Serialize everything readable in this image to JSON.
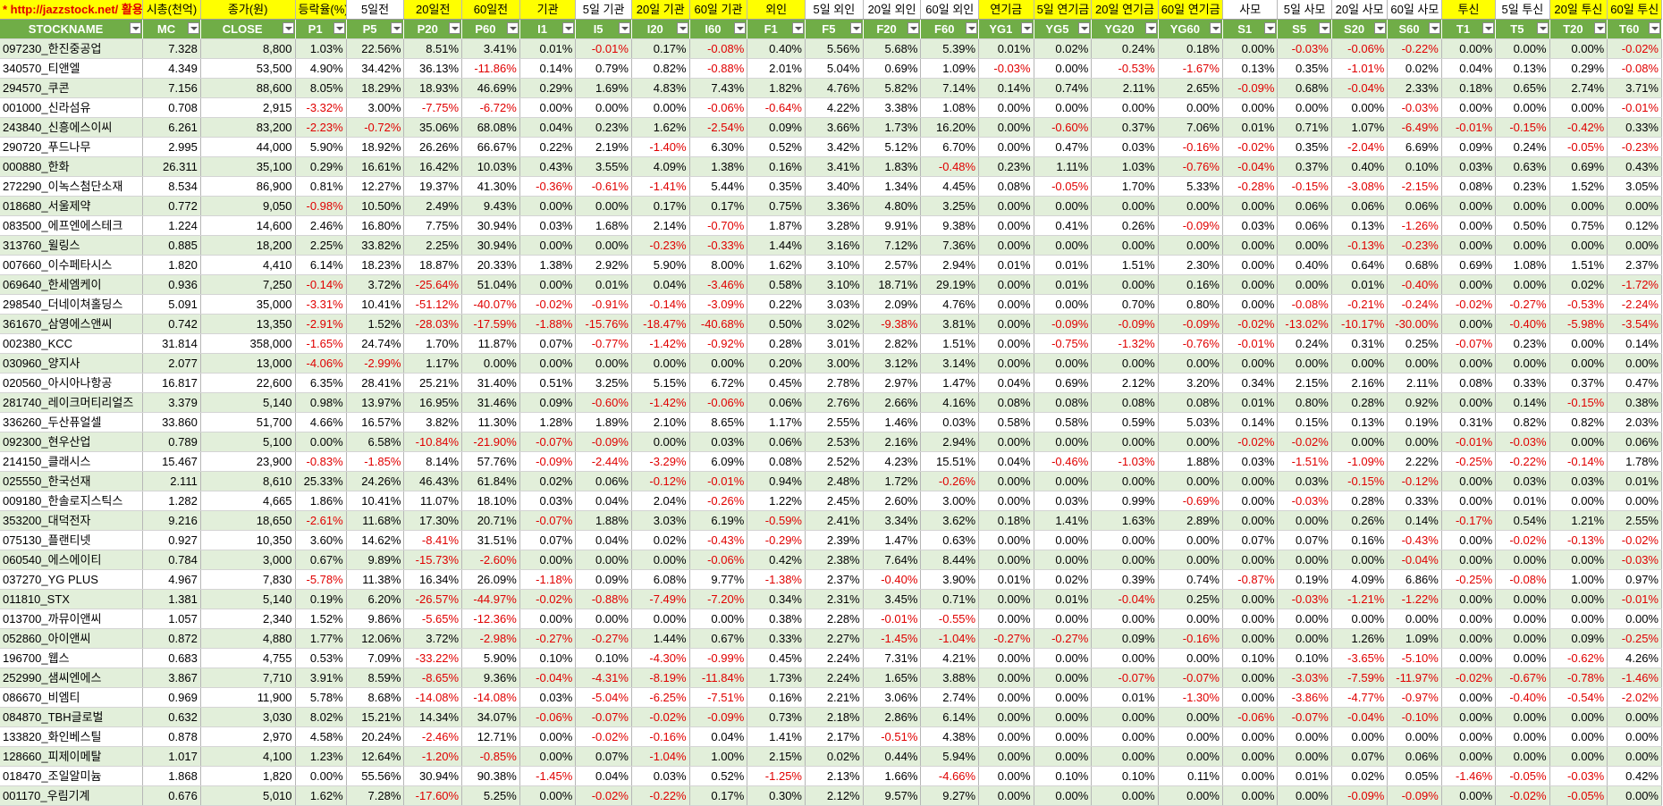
{
  "header1": [
    "* http://jazzstock.net/ 활용",
    "시총(천억)",
    "종가(원)",
    "등락율(%)",
    "5일전",
    "20일전",
    "60일전",
    "기관",
    "5일 기관",
    "20일 기관",
    "60일 기관",
    "외인",
    "5일 외인",
    "20일 외인",
    "60일 외인",
    "연기금",
    "5일 연기금",
    "20일 연기금",
    "60일 연기금",
    "사모",
    "5일 사모",
    "20일 사모",
    "60일 사모",
    "투신",
    "5일 투신",
    "20일 투신",
    "60일 투신"
  ],
  "header2": [
    "STOCKNAME",
    "MC",
    "CLOSE",
    "P1",
    "P5",
    "P20",
    "P60",
    "I1",
    "I5",
    "I20",
    "I60",
    "F1",
    "F5",
    "F20",
    "F60",
    "YG1",
    "YG5",
    "YG20",
    "YG60",
    "S1",
    "S5",
    "S20",
    "S60",
    "T1",
    "T5",
    "T20",
    "T60"
  ],
  "rows": [
    [
      "097230_한진중공업",
      "7.328",
      "8,800",
      "1.03%",
      "22.56%",
      "8.51%",
      "3.41%",
      "0.01%",
      "-0.01%",
      "0.17%",
      "-0.08%",
      "0.40%",
      "5.56%",
      "5.68%",
      "5.39%",
      "0.01%",
      "0.02%",
      "0.24%",
      "0.18%",
      "0.00%",
      "-0.03%",
      "-0.06%",
      "-0.22%",
      "0.00%",
      "0.00%",
      "0.00%",
      "-0.02%"
    ],
    [
      "340570_티앤엘",
      "4.349",
      "53,500",
      "4.90%",
      "34.42%",
      "36.13%",
      "-11.86%",
      "0.14%",
      "0.79%",
      "0.82%",
      "-0.88%",
      "2.01%",
      "5.04%",
      "0.69%",
      "1.09%",
      "-0.03%",
      "0.00%",
      "-0.53%",
      "-1.67%",
      "0.13%",
      "0.35%",
      "-1.01%",
      "0.02%",
      "0.04%",
      "0.13%",
      "0.29%",
      "-0.08%"
    ],
    [
      "294570_쿠콘",
      "7.156",
      "88,600",
      "8.05%",
      "18.29%",
      "18.93%",
      "46.69%",
      "0.29%",
      "1.69%",
      "4.83%",
      "7.43%",
      "1.82%",
      "4.76%",
      "5.82%",
      "7.14%",
      "0.14%",
      "0.74%",
      "2.11%",
      "2.65%",
      "-0.09%",
      "0.68%",
      "-0.04%",
      "2.33%",
      "0.18%",
      "0.65%",
      "2.74%",
      "3.71%"
    ],
    [
      "001000_신라섬유",
      "0.708",
      "2,915",
      "-3.32%",
      "3.00%",
      "-7.75%",
      "-6.72%",
      "0.00%",
      "0.00%",
      "0.00%",
      "-0.06%",
      "-0.64%",
      "4.22%",
      "3.38%",
      "1.08%",
      "0.00%",
      "0.00%",
      "0.00%",
      "0.00%",
      "0.00%",
      "0.00%",
      "0.00%",
      "-0.03%",
      "0.00%",
      "0.00%",
      "0.00%",
      "-0.01%"
    ],
    [
      "243840_신흥에스이씨",
      "6.261",
      "83,200",
      "-2.23%",
      "-0.72%",
      "35.06%",
      "68.08%",
      "0.04%",
      "0.23%",
      "1.62%",
      "-2.54%",
      "0.09%",
      "3.66%",
      "1.73%",
      "16.20%",
      "0.00%",
      "-0.60%",
      "0.37%",
      "7.06%",
      "0.01%",
      "0.71%",
      "1.07%",
      "-6.49%",
      "-0.01%",
      "-0.15%",
      "-0.42%",
      "0.33%"
    ],
    [
      "290720_푸드나무",
      "2.995",
      "44,000",
      "5.90%",
      "18.92%",
      "26.26%",
      "66.67%",
      "0.22%",
      "2.19%",
      "-1.40%",
      "6.30%",
      "0.52%",
      "3.42%",
      "5.12%",
      "6.70%",
      "0.00%",
      "0.47%",
      "0.03%",
      "-0.16%",
      "-0.02%",
      "0.35%",
      "-2.04%",
      "6.69%",
      "0.09%",
      "0.24%",
      "-0.05%",
      "-0.23%"
    ],
    [
      "000880_한화",
      "26.311",
      "35,100",
      "0.29%",
      "16.61%",
      "16.42%",
      "10.03%",
      "0.43%",
      "3.55%",
      "4.09%",
      "1.38%",
      "0.16%",
      "3.41%",
      "1.83%",
      "-0.48%",
      "0.23%",
      "1.11%",
      "1.03%",
      "-0.76%",
      "-0.04%",
      "0.37%",
      "0.40%",
      "0.10%",
      "0.03%",
      "0.63%",
      "0.69%",
      "0.43%"
    ],
    [
      "272290_이녹스첨단소재",
      "8.534",
      "86,900",
      "0.81%",
      "12.27%",
      "19.37%",
      "41.30%",
      "-0.36%",
      "-0.61%",
      "-1.41%",
      "5.44%",
      "0.35%",
      "3.40%",
      "1.34%",
      "4.45%",
      "0.08%",
      "-0.05%",
      "1.70%",
      "5.33%",
      "-0.28%",
      "-0.15%",
      "-3.08%",
      "-2.15%",
      "0.08%",
      "0.23%",
      "1.52%",
      "3.05%"
    ],
    [
      "018680_서울제약",
      "0.772",
      "9,050",
      "-0.98%",
      "10.50%",
      "2.49%",
      "9.43%",
      "0.00%",
      "0.00%",
      "0.17%",
      "0.17%",
      "0.75%",
      "3.36%",
      "4.80%",
      "3.25%",
      "0.00%",
      "0.00%",
      "0.00%",
      "0.00%",
      "0.00%",
      "0.06%",
      "0.06%",
      "0.06%",
      "0.00%",
      "0.00%",
      "0.00%",
      "0.00%"
    ],
    [
      "083500_에프엔에스테크",
      "1.224",
      "14,600",
      "2.46%",
      "16.80%",
      "7.75%",
      "30.94%",
      "0.03%",
      "1.68%",
      "2.14%",
      "-0.70%",
      "1.87%",
      "3.28%",
      "9.91%",
      "9.38%",
      "0.00%",
      "0.41%",
      "0.26%",
      "-0.09%",
      "0.03%",
      "0.06%",
      "0.13%",
      "-1.26%",
      "0.00%",
      "0.50%",
      "0.75%",
      "0.12%"
    ],
    [
      "313760_윌링스",
      "0.885",
      "18,200",
      "2.25%",
      "33.82%",
      "2.25%",
      "30.94%",
      "0.00%",
      "0.00%",
      "-0.23%",
      "-0.33%",
      "1.44%",
      "3.16%",
      "7.12%",
      "7.36%",
      "0.00%",
      "0.00%",
      "0.00%",
      "0.00%",
      "0.00%",
      "0.00%",
      "-0.13%",
      "-0.23%",
      "0.00%",
      "0.00%",
      "0.00%",
      "0.00%"
    ],
    [
      "007660_이수페타시스",
      "1.820",
      "4,410",
      "6.14%",
      "18.23%",
      "18.87%",
      "20.33%",
      "1.38%",
      "2.92%",
      "5.90%",
      "8.00%",
      "1.62%",
      "3.10%",
      "2.57%",
      "2.94%",
      "0.01%",
      "0.01%",
      "1.51%",
      "2.30%",
      "0.00%",
      "0.40%",
      "0.64%",
      "0.68%",
      "0.69%",
      "1.08%",
      "1.51%",
      "2.37%"
    ],
    [
      "069640_한세엠케이",
      "0.936",
      "7,250",
      "-0.14%",
      "3.72%",
      "-25.64%",
      "51.04%",
      "0.00%",
      "0.01%",
      "0.04%",
      "-3.46%",
      "0.58%",
      "3.10%",
      "18.71%",
      "29.19%",
      "0.00%",
      "0.01%",
      "0.00%",
      "0.16%",
      "0.00%",
      "0.00%",
      "0.01%",
      "-0.40%",
      "0.00%",
      "0.00%",
      "0.02%",
      "-1.72%"
    ],
    [
      "298540_더네이쳐홀딩스",
      "5.091",
      "35,000",
      "-3.31%",
      "10.41%",
      "-51.12%",
      "-40.07%",
      "-0.02%",
      "-0.91%",
      "-0.14%",
      "-3.09%",
      "0.22%",
      "3.03%",
      "2.09%",
      "4.76%",
      "0.00%",
      "0.00%",
      "0.70%",
      "0.80%",
      "0.00%",
      "-0.08%",
      "-0.21%",
      "-0.24%",
      "-0.02%",
      "-0.27%",
      "-0.53%",
      "-2.24%"
    ],
    [
      "361670_삼영에스앤씨",
      "0.742",
      "13,350",
      "-2.91%",
      "1.52%",
      "-28.03%",
      "-17.59%",
      "-1.88%",
      "-15.76%",
      "-18.47%",
      "-40.68%",
      "0.50%",
      "3.02%",
      "-9.38%",
      "3.81%",
      "0.00%",
      "-0.09%",
      "-0.09%",
      "-0.09%",
      "-0.02%",
      "-13.02%",
      "-10.17%",
      "-30.00%",
      "0.00%",
      "-0.40%",
      "-5.98%",
      "-3.54%"
    ],
    [
      "002380_KCC",
      "31.814",
      "358,000",
      "-1.65%",
      "24.74%",
      "1.70%",
      "11.87%",
      "0.07%",
      "-0.77%",
      "-1.42%",
      "-0.92%",
      "0.28%",
      "3.01%",
      "2.82%",
      "1.51%",
      "0.00%",
      "-0.75%",
      "-1.32%",
      "-0.76%",
      "-0.01%",
      "0.24%",
      "0.31%",
      "0.25%",
      "-0.07%",
      "0.23%",
      "0.00%",
      "0.14%"
    ],
    [
      "030960_양지사",
      "2.077",
      "13,000",
      "-4.06%",
      "-2.99%",
      "1.17%",
      "0.00%",
      "0.00%",
      "0.00%",
      "0.00%",
      "0.00%",
      "0.20%",
      "3.00%",
      "3.12%",
      "3.14%",
      "0.00%",
      "0.00%",
      "0.00%",
      "0.00%",
      "0.00%",
      "0.00%",
      "0.00%",
      "0.00%",
      "0.00%",
      "0.00%",
      "0.00%",
      "0.00%"
    ],
    [
      "020560_아시아나항공",
      "16.817",
      "22,600",
      "6.35%",
      "28.41%",
      "25.21%",
      "31.40%",
      "0.51%",
      "3.25%",
      "5.15%",
      "6.72%",
      "0.45%",
      "2.78%",
      "2.97%",
      "1.47%",
      "0.04%",
      "0.69%",
      "2.12%",
      "3.20%",
      "0.34%",
      "2.15%",
      "2.16%",
      "2.11%",
      "0.08%",
      "0.33%",
      "0.37%",
      "0.47%"
    ],
    [
      "281740_레이크머티리얼즈",
      "3.379",
      "5,140",
      "0.98%",
      "13.97%",
      "16.95%",
      "31.46%",
      "0.09%",
      "-0.60%",
      "-1.42%",
      "-0.06%",
      "0.06%",
      "2.76%",
      "2.66%",
      "4.16%",
      "0.08%",
      "0.08%",
      "0.08%",
      "0.08%",
      "0.01%",
      "0.80%",
      "0.28%",
      "0.92%",
      "0.00%",
      "0.14%",
      "-0.15%",
      "0.38%"
    ],
    [
      "336260_두산퓨얼셀",
      "33.860",
      "51,700",
      "4.66%",
      "16.57%",
      "3.82%",
      "11.30%",
      "1.28%",
      "1.89%",
      "2.10%",
      "8.65%",
      "1.17%",
      "2.55%",
      "1.46%",
      "0.03%",
      "0.58%",
      "0.58%",
      "0.59%",
      "5.03%",
      "0.14%",
      "0.15%",
      "0.13%",
      "0.19%",
      "0.31%",
      "0.82%",
      "0.82%",
      "2.03%"
    ],
    [
      "092300_현우산업",
      "0.789",
      "5,100",
      "0.00%",
      "6.58%",
      "-10.84%",
      "-21.90%",
      "-0.07%",
      "-0.09%",
      "0.00%",
      "0.03%",
      "0.06%",
      "2.53%",
      "2.16%",
      "2.94%",
      "0.00%",
      "0.00%",
      "0.00%",
      "0.00%",
      "-0.02%",
      "-0.02%",
      "0.00%",
      "0.00%",
      "-0.01%",
      "-0.03%",
      "0.00%",
      "0.06%"
    ],
    [
      "214150_클래시스",
      "15.467",
      "23,900",
      "-0.83%",
      "-1.85%",
      "8.14%",
      "57.76%",
      "-0.09%",
      "-2.44%",
      "-3.29%",
      "6.09%",
      "0.08%",
      "2.52%",
      "4.23%",
      "15.51%",
      "0.04%",
      "-0.46%",
      "-1.03%",
      "1.88%",
      "0.03%",
      "-1.51%",
      "-1.09%",
      "2.22%",
      "-0.25%",
      "-0.22%",
      "-0.14%",
      "1.78%"
    ],
    [
      "025550_한국선재",
      "2.111",
      "8,610",
      "25.33%",
      "24.26%",
      "46.43%",
      "61.84%",
      "0.02%",
      "0.06%",
      "-0.12%",
      "-0.01%",
      "0.94%",
      "2.48%",
      "1.72%",
      "-0.26%",
      "0.00%",
      "0.00%",
      "0.00%",
      "0.00%",
      "0.00%",
      "0.03%",
      "-0.15%",
      "-0.12%",
      "0.00%",
      "0.03%",
      "0.03%",
      "0.01%"
    ],
    [
      "009180_한솔로지스틱스",
      "1.282",
      "4,665",
      "1.86%",
      "10.41%",
      "11.07%",
      "18.10%",
      "0.03%",
      "0.04%",
      "2.04%",
      "-0.26%",
      "1.22%",
      "2.45%",
      "2.60%",
      "3.00%",
      "0.00%",
      "0.03%",
      "0.99%",
      "-0.69%",
      "0.00%",
      "-0.03%",
      "0.28%",
      "0.33%",
      "0.00%",
      "0.01%",
      "0.00%",
      "0.00%"
    ],
    [
      "353200_대덕전자",
      "9.216",
      "18,650",
      "-2.61%",
      "11.68%",
      "17.30%",
      "20.71%",
      "-0.07%",
      "1.88%",
      "3.03%",
      "6.19%",
      "-0.59%",
      "2.41%",
      "3.34%",
      "3.62%",
      "0.18%",
      "1.41%",
      "1.63%",
      "2.89%",
      "0.00%",
      "0.00%",
      "0.26%",
      "0.14%",
      "-0.17%",
      "0.54%",
      "1.21%",
      "2.55%"
    ],
    [
      "075130_플랜티넷",
      "0.927",
      "10,350",
      "3.60%",
      "14.62%",
      "-8.41%",
      "31.51%",
      "0.07%",
      "0.04%",
      "0.02%",
      "-0.43%",
      "-0.29%",
      "2.39%",
      "1.47%",
      "0.63%",
      "0.00%",
      "0.00%",
      "0.00%",
      "0.00%",
      "0.07%",
      "0.07%",
      "0.16%",
      "-0.43%",
      "0.00%",
      "-0.02%",
      "-0.13%",
      "-0.02%"
    ],
    [
      "060540_에스에이티",
      "0.784",
      "3,000",
      "0.67%",
      "9.89%",
      "-15.73%",
      "-2.60%",
      "0.00%",
      "0.00%",
      "0.00%",
      "-0.06%",
      "0.42%",
      "2.38%",
      "7.64%",
      "8.44%",
      "0.00%",
      "0.00%",
      "0.00%",
      "0.00%",
      "0.00%",
      "0.00%",
      "0.00%",
      "-0.04%",
      "0.00%",
      "0.00%",
      "0.00%",
      "-0.03%"
    ],
    [
      "037270_YG PLUS",
      "4.967",
      "7,830",
      "-5.78%",
      "11.38%",
      "16.34%",
      "26.09%",
      "-1.18%",
      "0.09%",
      "6.08%",
      "9.77%",
      "-1.38%",
      "2.37%",
      "-0.40%",
      "3.90%",
      "0.01%",
      "0.02%",
      "0.39%",
      "0.74%",
      "-0.87%",
      "0.19%",
      "4.09%",
      "6.86%",
      "-0.25%",
      "-0.08%",
      "1.00%",
      "0.97%"
    ],
    [
      "011810_STX",
      "1.381",
      "5,140",
      "0.19%",
      "6.20%",
      "-26.57%",
      "-44.97%",
      "-0.02%",
      "-0.88%",
      "-7.49%",
      "-7.20%",
      "0.34%",
      "2.31%",
      "3.45%",
      "0.71%",
      "0.00%",
      "0.01%",
      "-0.04%",
      "0.25%",
      "0.00%",
      "-0.03%",
      "-1.21%",
      "-1.22%",
      "0.00%",
      "0.00%",
      "0.00%",
      "-0.01%"
    ],
    [
      "013700_까뮤이앤씨",
      "1.057",
      "2,340",
      "1.52%",
      "9.86%",
      "-5.65%",
      "-12.36%",
      "0.00%",
      "0.00%",
      "0.00%",
      "0.00%",
      "0.38%",
      "2.28%",
      "-0.01%",
      "-0.55%",
      "0.00%",
      "0.00%",
      "0.00%",
      "0.00%",
      "0.00%",
      "0.00%",
      "0.00%",
      "0.00%",
      "0.00%",
      "0.00%",
      "0.00%",
      "0.00%"
    ],
    [
      "052860_아이앤씨",
      "0.872",
      "4,880",
      "1.77%",
      "12.06%",
      "3.72%",
      "-2.98%",
      "-0.27%",
      "-0.27%",
      "1.44%",
      "0.67%",
      "0.33%",
      "2.27%",
      "-1.45%",
      "-1.04%",
      "-0.27%",
      "-0.27%",
      "0.09%",
      "-0.16%",
      "0.00%",
      "0.00%",
      "1.26%",
      "1.09%",
      "0.00%",
      "0.00%",
      "0.09%",
      "-0.25%"
    ],
    [
      "196700_웹스",
      "0.683",
      "4,755",
      "0.53%",
      "7.09%",
      "-33.22%",
      "5.90%",
      "0.10%",
      "0.10%",
      "-4.30%",
      "-0.99%",
      "0.45%",
      "2.24%",
      "7.31%",
      "4.21%",
      "0.00%",
      "0.00%",
      "0.00%",
      "0.00%",
      "0.10%",
      "0.10%",
      "-3.65%",
      "-5.10%",
      "0.00%",
      "0.00%",
      "-0.62%",
      "4.26%"
    ],
    [
      "252990_샘씨엔에스",
      "3.867",
      "7,710",
      "3.91%",
      "8.59%",
      "-8.65%",
      "9.36%",
      "-0.04%",
      "-4.31%",
      "-8.19%",
      "-11.84%",
      "1.73%",
      "2.24%",
      "1.65%",
      "3.88%",
      "0.00%",
      "0.00%",
      "-0.07%",
      "-0.07%",
      "0.00%",
      "-3.03%",
      "-7.59%",
      "-11.97%",
      "-0.02%",
      "-0.67%",
      "-0.78%",
      "-1.46%"
    ],
    [
      "086670_비엠티",
      "0.969",
      "11,900",
      "5.78%",
      "8.68%",
      "-14.08%",
      "-14.08%",
      "0.03%",
      "-5.04%",
      "-6.25%",
      "-7.51%",
      "0.16%",
      "2.21%",
      "3.06%",
      "2.74%",
      "0.00%",
      "0.00%",
      "0.01%",
      "-1.30%",
      "0.00%",
      "-3.86%",
      "-4.77%",
      "-0.97%",
      "0.00%",
      "-0.40%",
      "-0.54%",
      "-2.02%"
    ],
    [
      "084870_TBH글로벌",
      "0.632",
      "3,030",
      "8.02%",
      "15.21%",
      "14.34%",
      "34.07%",
      "-0.06%",
      "-0.07%",
      "-0.02%",
      "-0.09%",
      "0.73%",
      "2.18%",
      "2.86%",
      "6.14%",
      "0.00%",
      "0.00%",
      "0.00%",
      "0.00%",
      "-0.06%",
      "-0.07%",
      "-0.04%",
      "-0.10%",
      "0.00%",
      "0.00%",
      "0.00%",
      "0.00%"
    ],
    [
      "133820_화인베스틸",
      "0.878",
      "2,970",
      "4.58%",
      "20.24%",
      "-2.46%",
      "12.71%",
      "0.00%",
      "-0.02%",
      "-0.16%",
      "0.04%",
      "1.41%",
      "2.17%",
      "-0.51%",
      "4.38%",
      "0.00%",
      "0.00%",
      "0.00%",
      "0.00%",
      "0.00%",
      "0.00%",
      "0.00%",
      "0.00%",
      "0.00%",
      "0.00%",
      "0.00%",
      "0.00%"
    ],
    [
      "128660_피제이메탈",
      "1.017",
      "4,100",
      "1.23%",
      "12.64%",
      "-1.20%",
      "-0.85%",
      "0.00%",
      "0.07%",
      "-1.04%",
      "1.00%",
      "2.15%",
      "0.02%",
      "0.44%",
      "5.94%",
      "0.00%",
      "0.00%",
      "0.00%",
      "0.00%",
      "0.00%",
      "0.00%",
      "0.07%",
      "0.06%",
      "0.00%",
      "0.00%",
      "0.00%",
      "0.00%"
    ],
    [
      "018470_조일알미늄",
      "1.868",
      "1,820",
      "0.00%",
      "55.56%",
      "30.94%",
      "90.38%",
      "-1.45%",
      "0.04%",
      "0.03%",
      "0.52%",
      "-1.25%",
      "2.13%",
      "1.66%",
      "-4.66%",
      "0.00%",
      "0.10%",
      "0.10%",
      "0.11%",
      "0.00%",
      "0.01%",
      "0.02%",
      "0.05%",
      "-1.46%",
      "-0.05%",
      "-0.03%",
      "0.42%"
    ],
    [
      "001170_우림기계",
      "0.676",
      "5,010",
      "1.62%",
      "7.28%",
      "-17.60%",
      "5.25%",
      "0.00%",
      "-0.02%",
      "-0.22%",
      "0.17%",
      "0.30%",
      "2.12%",
      "9.57%",
      "9.27%",
      "0.00%",
      "0.00%",
      "0.00%",
      "0.00%",
      "0.00%",
      "0.00%",
      "-0.09%",
      "-0.09%",
      "0.00%",
      "-0.02%",
      "-0.05%",
      "0.00%"
    ]
  ]
}
